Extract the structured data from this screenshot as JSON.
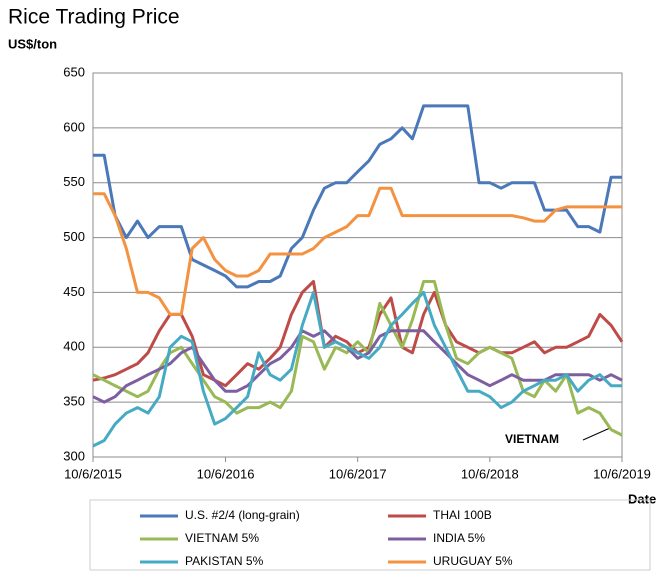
{
  "chart_data": {
    "type": "line",
    "title": "Rice Trading Price",
    "y_label": "US$/ton",
    "x_label": "Date",
    "annotation": "VIETNAM",
    "x": [
      "10/6/2015",
      "11/6/2015",
      "12/6/2015",
      "1/6/2016",
      "2/6/2016",
      "3/6/2016",
      "4/6/2016",
      "5/6/2016",
      "6/6/2016",
      "7/6/2016",
      "8/6/2016",
      "9/6/2016",
      "10/6/2016",
      "11/6/2016",
      "12/6/2016",
      "1/6/2017",
      "2/6/2017",
      "3/6/2017",
      "4/6/2017",
      "5/6/2017",
      "6/6/2017",
      "7/6/2017",
      "8/6/2017",
      "9/6/2017",
      "10/6/2017",
      "11/6/2017",
      "12/6/2017",
      "1/6/2018",
      "2/6/2018",
      "3/6/2018",
      "4/6/2018",
      "5/6/2018",
      "6/6/2018",
      "7/6/2018",
      "8/6/2018",
      "9/6/2018",
      "10/6/2018",
      "11/6/2018",
      "12/6/2018",
      "1/6/2019",
      "2/6/2019",
      "3/6/2019",
      "4/6/2019",
      "5/6/2019",
      "6/6/2019",
      "7/6/2019",
      "8/6/2019",
      "9/6/2019",
      "10/6/2019"
    ],
    "xlim": [
      "10/6/2015",
      "10/6/2019"
    ],
    "xticks": [
      "10/6/2015",
      "10/6/2016",
      "10/6/2017",
      "10/6/2018",
      "10/6/2019"
    ],
    "ylim": [
      300,
      650
    ],
    "yticks": [
      300,
      350,
      400,
      450,
      500,
      550,
      600,
      650
    ],
    "grid": true,
    "series": [
      {
        "name": "U.S. #2/4 (long-grain)",
        "color": "#4a78b8",
        "values": [
          575,
          575,
          520,
          500,
          515,
          500,
          510,
          510,
          510,
          480,
          475,
          470,
          465,
          455,
          455,
          460,
          460,
          465,
          490,
          500,
          525,
          545,
          550,
          550,
          560,
          570,
          585,
          590,
          600,
          590,
          620,
          620,
          620,
          620,
          620,
          550,
          550,
          545,
          550,
          550,
          550,
          525,
          525,
          525,
          510,
          510,
          505,
          555,
          555
        ]
      },
      {
        "name": "THAI 100B",
        "color": "#be4b48",
        "values": [
          370,
          372,
          375,
          380,
          385,
          395,
          415,
          430,
          430,
          410,
          375,
          370,
          365,
          375,
          385,
          380,
          390,
          400,
          430,
          450,
          460,
          400,
          410,
          405,
          395,
          400,
          430,
          445,
          400,
          395,
          430,
          450,
          420,
          405,
          400,
          395,
          400,
          395,
          395,
          400,
          405,
          395,
          400,
          400,
          405,
          410,
          430,
          420,
          405
        ]
      },
      {
        "name": "VIETNAM 5%",
        "color": "#98b954",
        "values": [
          375,
          370,
          365,
          360,
          355,
          360,
          380,
          395,
          400,
          385,
          370,
          355,
          350,
          340,
          345,
          345,
          350,
          345,
          360,
          410,
          405,
          380,
          400,
          395,
          405,
          395,
          440,
          420,
          400,
          425,
          460,
          460,
          420,
          390,
          385,
          395,
          400,
          395,
          390,
          360,
          355,
          370,
          360,
          375,
          340,
          345,
          340,
          325,
          320
        ]
      },
      {
        "name": "INDIA 5%",
        "color": "#7d5fa0",
        "values": [
          355,
          350,
          355,
          365,
          370,
          375,
          380,
          385,
          395,
          400,
          385,
          370,
          360,
          360,
          365,
          375,
          385,
          390,
          400,
          415,
          410,
          415,
          405,
          400,
          390,
          395,
          410,
          415,
          415,
          415,
          415,
          405,
          395,
          385,
          375,
          370,
          365,
          370,
          375,
          370,
          370,
          370,
          375,
          375,
          375,
          375,
          370,
          375,
          370
        ]
      },
      {
        "name": "PAKISTAN 5%",
        "color": "#46aac4",
        "values": [
          310,
          315,
          330,
          340,
          345,
          340,
          355,
          400,
          410,
          405,
          360,
          330,
          335,
          345,
          355,
          395,
          375,
          370,
          380,
          420,
          450,
          400,
          405,
          400,
          395,
          390,
          400,
          420,
          430,
          440,
          450,
          420,
          400,
          380,
          360,
          360,
          355,
          345,
          350,
          360,
          365,
          370,
          370,
          375,
          360,
          370,
          375,
          365,
          365
        ]
      },
      {
        "name": "URUGUAY 5%",
        "color": "#f39240",
        "values": [
          540,
          540,
          520,
          490,
          450,
          450,
          445,
          430,
          430,
          490,
          500,
          480,
          470,
          465,
          465,
          470,
          485,
          485,
          485,
          485,
          490,
          500,
          505,
          510,
          520,
          520,
          545,
          545,
          520,
          520,
          520,
          520,
          520,
          520,
          520,
          520,
          520,
          520,
          520,
          518,
          515,
          515,
          525,
          528,
          528,
          528,
          528,
          528,
          528
        ]
      }
    ]
  }
}
